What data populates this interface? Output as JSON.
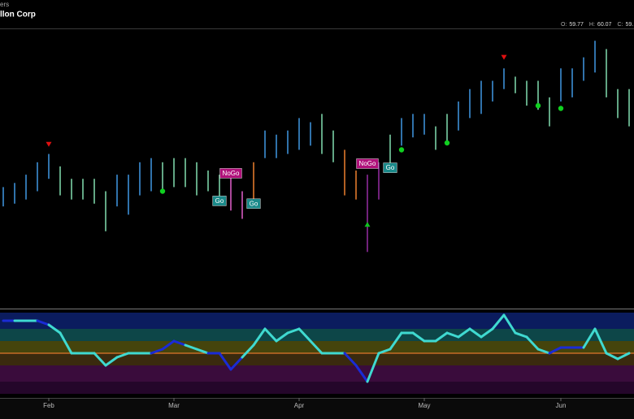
{
  "chart_data": {
    "type": "ohlc",
    "subtitle": "ers",
    "title": "llon Corp",
    "header": [
      {
        "label": "O:",
        "value": "59.77"
      },
      {
        "label": "H:",
        "value": "60.07"
      },
      {
        "label": "C:",
        "value": "59."
      }
    ],
    "categories": [
      null,
      null,
      null,
      null,
      "Feb",
      null,
      null,
      null,
      null,
      null,
      null,
      null,
      null,
      null,
      null,
      "Mar",
      null,
      null,
      null,
      null,
      null,
      null,
      null,
      null,
      null,
      null,
      "Apr",
      null,
      null,
      null,
      null,
      null,
      null,
      null,
      null,
      null,
      null,
      "May",
      null,
      null,
      null,
      null,
      null,
      null,
      null,
      null,
      null,
      null,
      null,
      "Jun",
      null,
      null,
      null,
      null,
      null,
      null
    ],
    "high": [
      52.8,
      53.1,
      53.7,
      54.6,
      55.2,
      54.3,
      53.4,
      53.4,
      53.4,
      52.5,
      53.7,
      53.7,
      54.6,
      54.9,
      54.6,
      54.9,
      54.9,
      54.6,
      54.0,
      53.7,
      53.7,
      52.5,
      54.6,
      56.9,
      56.6,
      56.9,
      57.8,
      57.5,
      58.1,
      56.9,
      55.5,
      54.0,
      53.7,
      54.6,
      56.6,
      57.8,
      58.1,
      58.1,
      57.2,
      58.1,
      59.0,
      59.9,
      60.5,
      60.5,
      61.4,
      60.8,
      60.5,
      60.5,
      59.3,
      61.4,
      61.4,
      62.2,
      63.4,
      62.8,
      59.9,
      59.9
    ],
    "low": [
      51.4,
      51.6,
      51.9,
      52.5,
      53.4,
      52.2,
      51.9,
      51.9,
      51.6,
      49.6,
      51.4,
      50.8,
      52.2,
      52.5,
      52.5,
      52.8,
      52.8,
      52.2,
      52.5,
      51.6,
      51.1,
      50.5,
      51.6,
      54.9,
      54.9,
      55.2,
      55.5,
      55.8,
      55.2,
      54.6,
      52.2,
      51.9,
      48.1,
      51.9,
      54.3,
      55.8,
      56.4,
      56.6,
      55.5,
      56.1,
      56.9,
      57.8,
      58.1,
      59.0,
      59.9,
      59.6,
      58.7,
      58.4,
      57.2,
      59.0,
      59.3,
      60.5,
      61.1,
      59.3,
      57.8,
      57.2
    ],
    "bar_colors": [
      "#3d8fd6",
      "#3d8fd6",
      "#3d8fd6",
      "#3d8fd6",
      "#3d8fd6",
      "#7ad1a6",
      "#7ad1a6",
      "#7ad1a6",
      "#7ad1a6",
      "#7ad1a6",
      "#3d8fd6",
      "#3d8fd6",
      "#3d8fd6",
      "#3d8fd6",
      "#7ad1a6",
      "#7ad1a6",
      "#7ad1a6",
      "#7ad1a6",
      "#7ad1a6",
      "#7ad1a6",
      "#d65ac0",
      "#d65ac0",
      "#e0782c",
      "#3d8fd6",
      "#3d8fd6",
      "#3d8fd6",
      "#3d8fd6",
      "#3d8fd6",
      "#7ad1a6",
      "#7ad1a6",
      "#e0782c",
      "#e0782c",
      "#8e2a9a",
      "#8e2a9a",
      "#7ad1a6",
      "#3d8fd6",
      "#3d8fd6",
      "#3d8fd6",
      "#7ad1a6",
      "#7ad1a6",
      "#3d8fd6",
      "#3d8fd6",
      "#3d8fd6",
      "#3d8fd6",
      "#3d8fd6",
      "#7ad1a6",
      "#7ad1a6",
      "#7ad1a6",
      "#7ad1a6",
      "#3d8fd6",
      "#3d8fd6",
      "#3d8fd6",
      "#3d8fd6",
      "#7ad1a6",
      "#7ad1a6",
      "#7ad1a6"
    ],
    "ylim": [
      44,
      64
    ],
    "annotations": [
      {
        "text": "Go",
        "at": 19,
        "value": 51.8,
        "color": "#1a8a8a"
      },
      {
        "text": "NoGo",
        "at": 20,
        "value": 53.8,
        "color": "#b0107a"
      },
      {
        "text": "Go",
        "at": 22,
        "value": 51.6,
        "color": "#1a8a8a"
      },
      {
        "text": "NoGo",
        "at": 32,
        "value": 54.5,
        "color": "#b0107a"
      },
      {
        "text": "Go",
        "at": 34,
        "value": 54.2,
        "color": "#1a8a8a"
      }
    ],
    "markers": [
      {
        "type": "down",
        "at": 4,
        "value": 55.9,
        "color": "#e01010"
      },
      {
        "type": "down",
        "at": 44,
        "value": 62.2,
        "color": "#e01010"
      },
      {
        "type": "up",
        "at": 32,
        "value": 50.1,
        "color": "#10c020"
      },
      {
        "type": "dot",
        "at": 14,
        "value": 52.5,
        "color": "#10d020"
      },
      {
        "type": "dot",
        "at": 22,
        "value": 51.6,
        "color": "#10d020"
      },
      {
        "type": "dot",
        "at": 35,
        "value": 55.5,
        "color": "#10d020"
      },
      {
        "type": "dot",
        "at": 39,
        "value": 56.0,
        "color": "#10d020"
      },
      {
        "type": "dot",
        "at": 47,
        "value": 58.7,
        "color": "#10d020"
      },
      {
        "type": "dot",
        "at": 49,
        "value": 58.5,
        "color": "#10d020"
      }
    ],
    "oscillator": {
      "type": "line",
      "ylim": [
        -5,
        5
      ],
      "zero": 0,
      "zero_color": "#e0782c",
      "bands": [
        {
          "from": 3,
          "to": 5,
          "color": "#0b1c5e"
        },
        {
          "from": 1.5,
          "to": 3,
          "color": "#0d4648"
        },
        {
          "from": 0,
          "to": 1.5,
          "color": "#45440c"
        },
        {
          "from": -1.5,
          "to": 0,
          "color": "#3a2a0e"
        },
        {
          "from": -3.5,
          "to": -1.5,
          "color": "#3a0c3c"
        },
        {
          "from": -5,
          "to": -3.5,
          "color": "#24062a"
        }
      ],
      "values": [
        4.0,
        4.0,
        4.0,
        4.0,
        3.5,
        2.5,
        0,
        0,
        0,
        -1.5,
        -0.5,
        0,
        0,
        0,
        0.5,
        1.5,
        1.0,
        0.5,
        0,
        0,
        -2.0,
        -0.5,
        1.0,
        3.0,
        1.5,
        2.5,
        3.0,
        1.5,
        0,
        0,
        0,
        -1.5,
        -3.5,
        0,
        0.5,
        2.5,
        2.5,
        1.5,
        1.5,
        2.5,
        2.0,
        3.0,
        2.0,
        3.0,
        4.7,
        2.5,
        2.0,
        0.5,
        0,
        0.7,
        0.7,
        0.7,
        3.0,
        0,
        -0.7,
        0
      ],
      "colors": [
        "#1a2bd6",
        "#1a2bd6",
        "#3fd9d0",
        "#3fd9d0",
        "#1a2bd6",
        "#3fd9d0",
        "#3fd9d0",
        "#3fd9d0",
        "#3fd9d0",
        "#3fd9d0",
        "#3fd9d0",
        "#3fd9d0",
        "#3fd9d0",
        "#3fd9d0",
        "#1a2bd6",
        "#1a2bd6",
        "#1a2bd6",
        "#3fd9d0",
        "#3fd9d0",
        "#1a2bd6",
        "#1a2bd6",
        "#1a2bd6",
        "#3fd9d0",
        "#3fd9d0",
        "#3fd9d0",
        "#3fd9d0",
        "#3fd9d0",
        "#3fd9d0",
        "#3fd9d0",
        "#3fd9d0",
        "#3fd9d0",
        "#1a2bd6",
        "#1a2bd6",
        "#3fd9d0",
        "#3fd9d0",
        "#3fd9d0",
        "#3fd9d0",
        "#3fd9d0",
        "#3fd9d0",
        "#3fd9d0",
        "#3fd9d0",
        "#3fd9d0",
        "#3fd9d0",
        "#3fd9d0",
        "#3fd9d0",
        "#3fd9d0",
        "#3fd9d0",
        "#3fd9d0",
        "#3fd9d0",
        "#1a2bd6",
        "#1a2bd6",
        "#1a2bd6",
        "#3fd9d0",
        "#3fd9d0",
        "#3fd9d0",
        "#3fd9d0"
      ]
    }
  }
}
